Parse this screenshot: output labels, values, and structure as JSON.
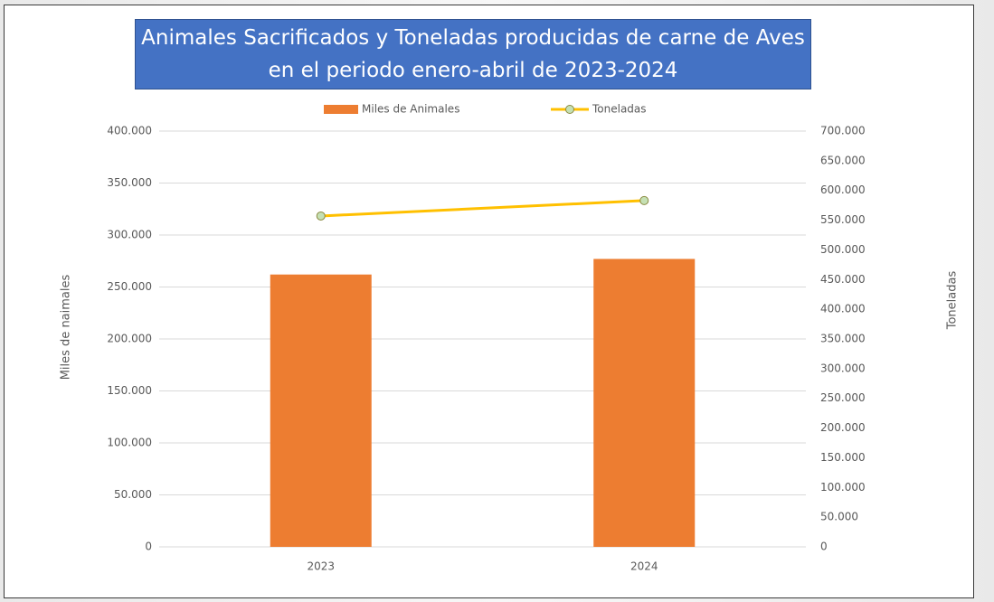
{
  "chart_data": {
    "type": "combo",
    "title": "Animales Sacrificados y Toneladas producidas de carne de Aves en el periodo enero-abril de 2023-2024",
    "categories": [
      "2023",
      "2024"
    ],
    "series": [
      {
        "name": "Miles de Animales",
        "type": "bar",
        "color": "#ed7d31",
        "values": [
          262000,
          277000
        ]
      },
      {
        "name": "Toneladas",
        "type": "line",
        "axis": "y2",
        "color": "#ffc000",
        "marker_color": "#c5e0b4",
        "values": [
          557000,
          583000
        ]
      }
    ],
    "ylabel": "Miles de naimales",
    "y2label": "Toneladas",
    "ylim": [
      0,
      400000
    ],
    "yticks": [
      0,
      {
        "value": 50000,
        "label": "50.000"
      },
      {
        "value": 100000,
        "label": "100.000"
      },
      {
        "value": 150000,
        "label": "150.000"
      },
      {
        "value": 200000,
        "label": "200.000"
      },
      {
        "value": 250000,
        "label": "250.000"
      },
      {
        "value": 300000,
        "label": "300.000"
      },
      {
        "value": 350000,
        "label": "350.000"
      },
      {
        "value": 400000,
        "label": "400.000"
      }
    ],
    "y2lim": [
      0,
      700000
    ],
    "y2ticks": [
      0,
      {
        "value": 50000,
        "label": "50.000"
      },
      {
        "value": 100000,
        "label": "100.000"
      },
      {
        "value": 150000,
        "label": "150.000"
      },
      {
        "value": 200000,
        "label": "200.000"
      },
      {
        "value": 250000,
        "label": "250.000"
      },
      {
        "value": 300000,
        "label": "300.000"
      },
      {
        "value": 350000,
        "label": "350.000"
      },
      {
        "value": 400000,
        "label": "400.000"
      },
      {
        "value": 450000,
        "label": "450.000"
      },
      {
        "value": 500000,
        "label": "500.000"
      },
      {
        "value": 550000,
        "label": "550.000"
      },
      {
        "value": 600000,
        "label": "600.000"
      },
      {
        "value": 650000,
        "label": "650.000"
      },
      {
        "value": 700000,
        "label": "700.000"
      }
    ],
    "grid": true
  }
}
